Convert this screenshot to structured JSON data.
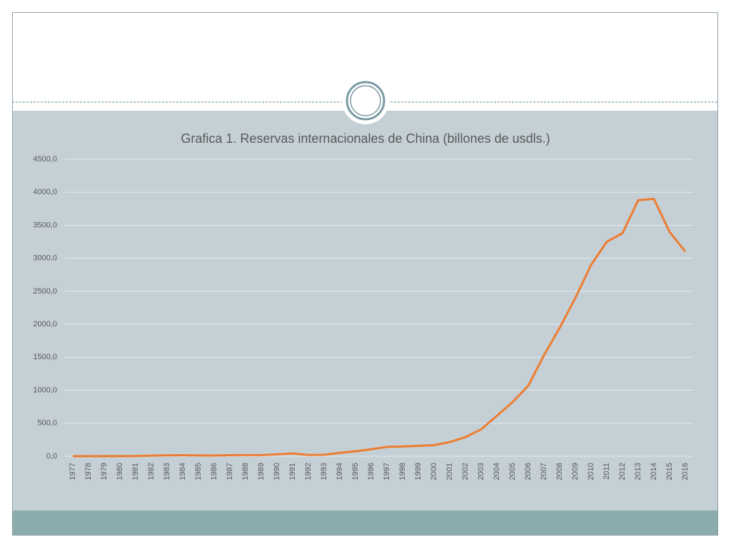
{
  "chart_data": {
    "type": "line",
    "title": "Grafica 1. Reservas internacionales de China (billones de usdls.)",
    "categories": [
      "1977",
      "1978",
      "1979",
      "1980",
      "1981",
      "1982",
      "1983",
      "1984",
      "1985",
      "1986",
      "1987",
      "1988",
      "1989",
      "1990",
      "1991",
      "1992",
      "1993",
      "1994",
      "1995",
      "1996",
      "1997",
      "1998",
      "1999",
      "2000",
      "2001",
      "2002",
      "2003",
      "2004",
      "2005",
      "2006",
      "2007",
      "2008",
      "2009",
      "2010",
      "2011",
      "2012",
      "2013",
      "2014",
      "2015",
      "2016"
    ],
    "series": [
      {
        "color": "#ed7d31",
        "values": [
          2.3,
          1.6,
          2.2,
          2.5,
          4.8,
          11.3,
          14.9,
          16.7,
          12.7,
          11.5,
          16.3,
          18.5,
          17.5,
          29.6,
          43.7,
          20.6,
          22.4,
          52.9,
          75.4,
          107,
          143,
          149.2,
          157.7,
          168.3,
          215.6,
          291.1,
          408.2,
          614.5,
          821.5,
          1068.5,
          1530.3,
          1946,
          2399,
          2900,
          3250,
          3380,
          3880,
          3900,
          3400,
          3100
        ]
      }
    ],
    "ylim": [
      0,
      4500
    ],
    "yticks": [
      {
        "value": 0,
        "label": "0,0"
      },
      {
        "value": 500,
        "label": "500,0"
      },
      {
        "value": 1000,
        "label": "1000,0"
      },
      {
        "value": 1500,
        "label": "1500,0"
      },
      {
        "value": 2000,
        "label": "2000,0"
      },
      {
        "value": 2500,
        "label": "2500,0"
      },
      {
        "value": 3000,
        "label": "3000,0"
      },
      {
        "value": 3500,
        "label": "3500,0"
      },
      {
        "value": 4000,
        "label": "4000,0"
      },
      {
        "value": 4500,
        "label": "4500,0"
      }
    ],
    "grid": true
  }
}
